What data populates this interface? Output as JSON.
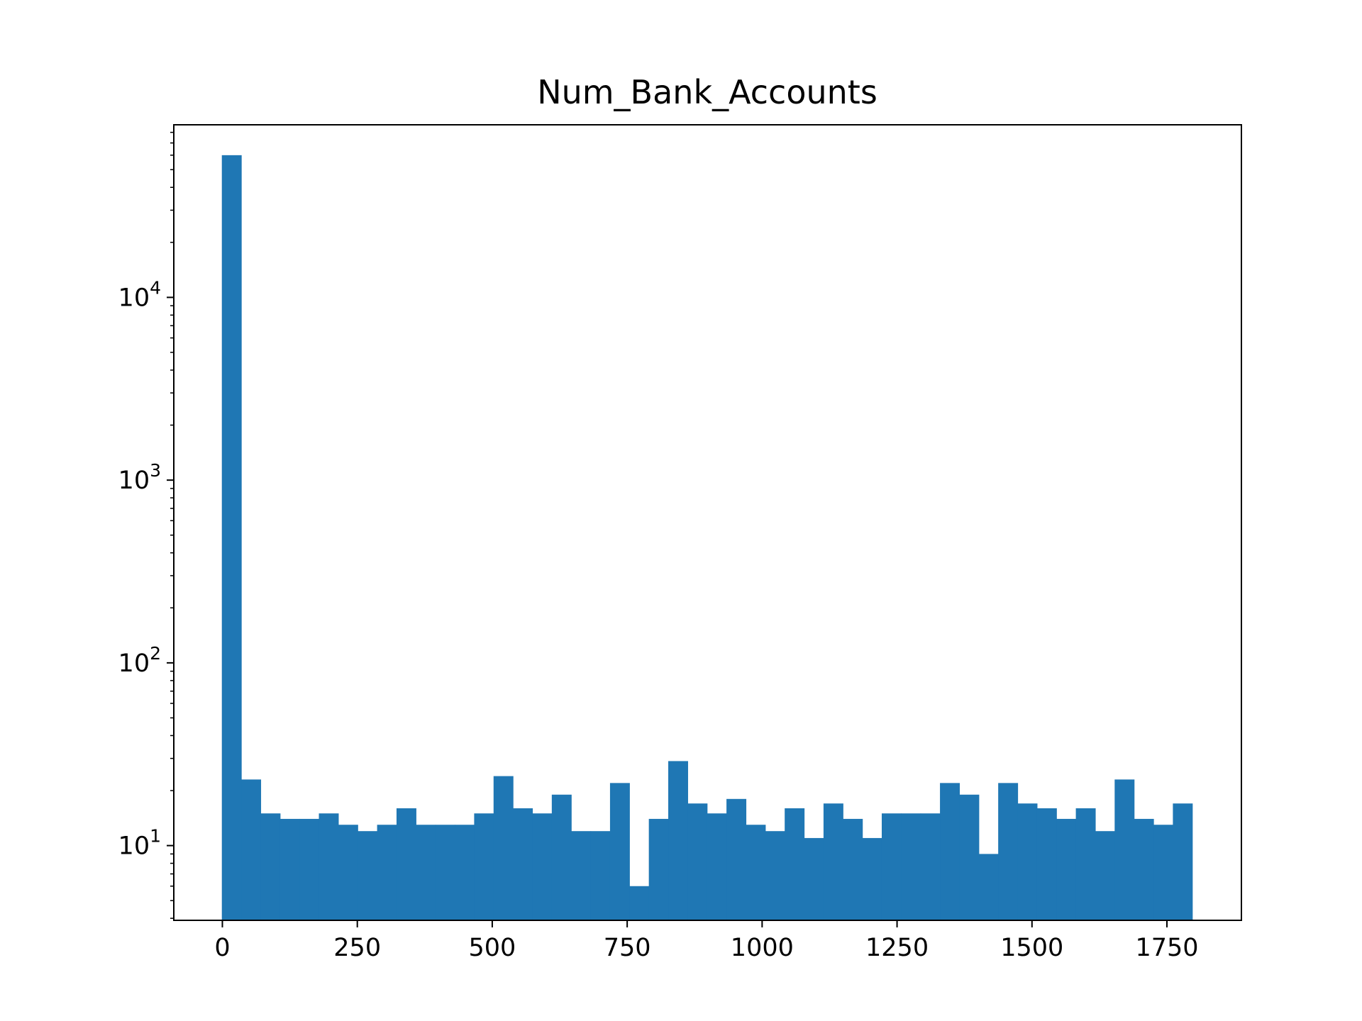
{
  "chart_data": {
    "type": "bar",
    "title": "Num_Bank_Accounts",
    "xlabel": "",
    "ylabel": "",
    "yscale": "log",
    "xlim": [
      -90,
      1888
    ],
    "ylim": [
      3.9,
      88000
    ],
    "x_ticks": [
      0,
      250,
      500,
      750,
      1000,
      1250,
      1500,
      1750
    ],
    "x_tick_labels": [
      "0",
      "250",
      "500",
      "750",
      "1000",
      "1250",
      "1500",
      "1750"
    ],
    "y_ticks": [
      10,
      100,
      1000,
      10000
    ],
    "y_tick_labels": [
      {
        "base": "10",
        "exp": "1"
      },
      {
        "base": "10",
        "exp": "2"
      },
      {
        "base": "10",
        "exp": "3"
      },
      {
        "base": "10",
        "exp": "4"
      }
    ],
    "bin_start": -1,
    "bin_width": 35.96,
    "counts": [
      60000,
      23,
      15,
      14,
      14,
      15,
      13,
      12,
      13,
      16,
      13,
      13,
      13,
      15,
      24,
      16,
      15,
      19,
      12,
      12,
      22,
      6,
      14,
      29,
      17,
      15,
      18,
      13,
      12,
      16,
      11,
      17,
      14,
      11,
      15,
      15,
      15,
      22,
      19,
      9,
      22,
      17,
      16,
      14,
      16,
      12,
      23,
      14,
      13,
      17
    ],
    "grid": false,
    "legend": "none",
    "bar_color": "#1f77b4"
  }
}
